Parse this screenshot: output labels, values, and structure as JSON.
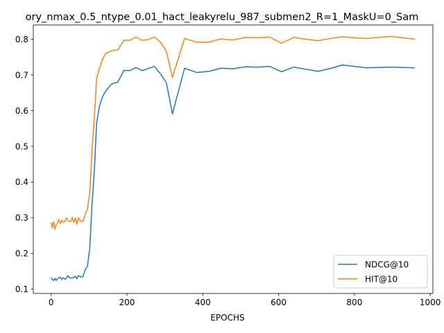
{
  "chart_data": {
    "type": "line",
    "title": "ory_nmax_0.5_ntype_0.01_hact_leakyrelu_987_submen2_R=1_MaskU=0_Sam",
    "xlabel": "EPOCHS",
    "ylabel": "",
    "xlim": [
      -47,
      1007
    ],
    "ylim": [
      0.088,
      0.84
    ],
    "xticks": [
      0,
      200,
      400,
      600,
      800,
      1000
    ],
    "yticks": [
      0.1,
      0.2,
      0.3,
      0.4,
      0.5,
      0.6,
      0.7,
      0.8
    ],
    "grid": false,
    "legend_position": "lower-right",
    "series": [
      {
        "name": "NDCG@10",
        "color": "#1f77b4",
        "x": [
          0,
          3,
          6,
          10,
          13,
          16,
          20,
          24,
          28,
          32,
          36,
          40,
          44,
          48,
          52,
          56,
          60,
          64,
          68,
          72,
          78,
          84,
          90,
          96,
          102,
          108,
          114,
          120,
          128,
          136,
          144,
          160,
          176,
          192,
          208,
          224,
          240,
          256,
          272,
          288,
          304,
          320,
          352,
          384,
          416,
          448,
          480,
          512,
          544,
          576,
          608,
          640,
          672,
          704,
          736,
          768,
          800,
          832,
          864,
          896,
          928,
          960
        ],
        "values": [
          0.133,
          0.128,
          0.124,
          0.13,
          0.124,
          0.129,
          0.131,
          0.134,
          0.127,
          0.132,
          0.128,
          0.13,
          0.138,
          0.133,
          0.131,
          0.132,
          0.133,
          0.136,
          0.129,
          0.138,
          0.134,
          0.135,
          0.155,
          0.165,
          0.215,
          0.34,
          0.43,
          0.565,
          0.615,
          0.64,
          0.655,
          0.675,
          0.68,
          0.713,
          0.712,
          0.721,
          0.712,
          0.718,
          0.724,
          0.704,
          0.678,
          0.591,
          0.719,
          0.707,
          0.71,
          0.719,
          0.717,
          0.723,
          0.722,
          0.724,
          0.709,
          0.722,
          0.716,
          0.71,
          0.718,
          0.728,
          0.724,
          0.72,
          0.721,
          0.722,
          0.721,
          0.72
        ]
      },
      {
        "name": "HIT@10",
        "color": "#ff7f0e",
        "x": [
          0,
          3,
          6,
          10,
          13,
          16,
          20,
          24,
          28,
          32,
          36,
          40,
          44,
          48,
          52,
          56,
          60,
          64,
          68,
          72,
          78,
          84,
          90,
          96,
          102,
          108,
          114,
          120,
          128,
          136,
          144,
          160,
          176,
          192,
          208,
          224,
          240,
          256,
          272,
          288,
          304,
          320,
          352,
          384,
          416,
          448,
          480,
          512,
          544,
          576,
          608,
          640,
          672,
          704,
          736,
          768,
          800,
          832,
          864,
          896,
          928,
          960
        ],
        "values": [
          0.287,
          0.272,
          0.289,
          0.268,
          0.281,
          0.284,
          0.295,
          0.284,
          0.293,
          0.287,
          0.29,
          0.3,
          0.293,
          0.289,
          0.29,
          0.301,
          0.287,
          0.299,
          0.282,
          0.3,
          0.29,
          0.289,
          0.31,
          0.325,
          0.37,
          0.49,
          0.58,
          0.69,
          0.72,
          0.745,
          0.76,
          0.768,
          0.77,
          0.797,
          0.797,
          0.806,
          0.797,
          0.799,
          0.806,
          0.793,
          0.766,
          0.693,
          0.802,
          0.792,
          0.792,
          0.801,
          0.798,
          0.805,
          0.804,
          0.806,
          0.789,
          0.805,
          0.8,
          0.796,
          0.802,
          0.807,
          0.804,
          0.802,
          0.805,
          0.808,
          0.804,
          0.8
        ]
      }
    ]
  }
}
